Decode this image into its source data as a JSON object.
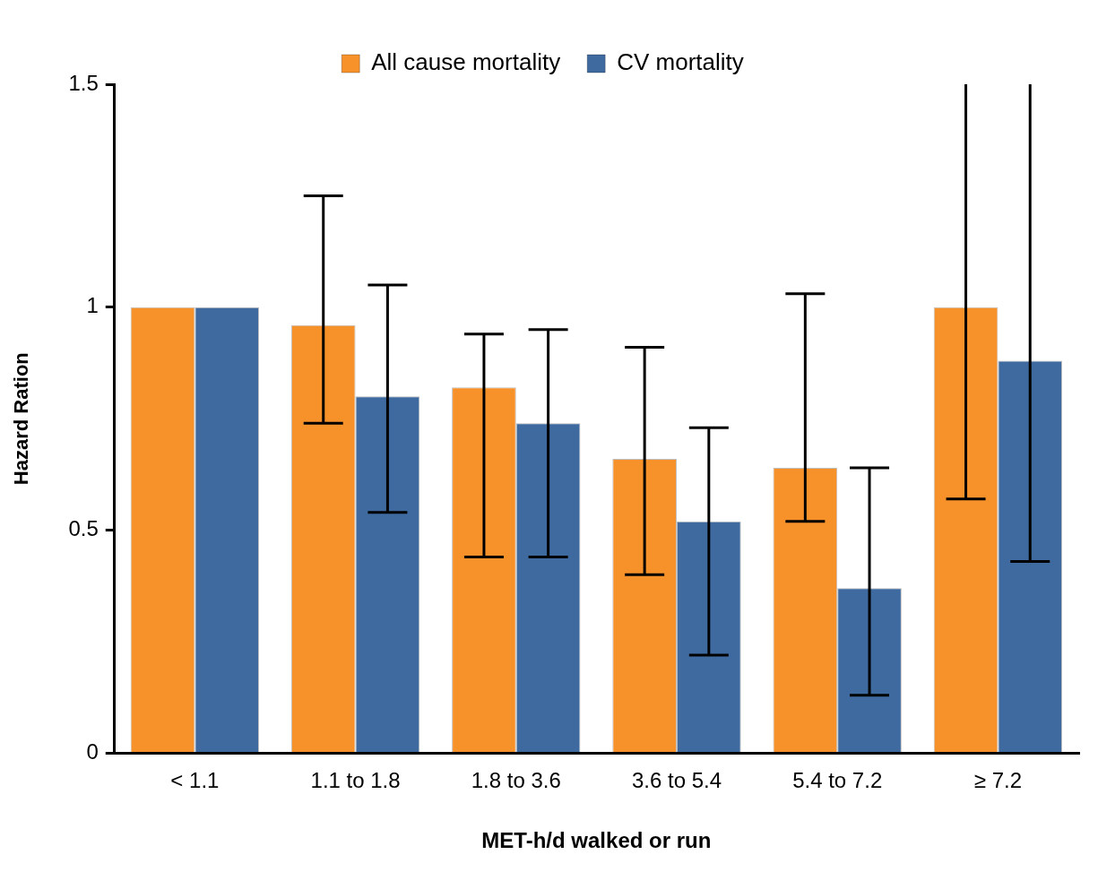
{
  "chart_data": {
    "type": "bar",
    "categories": [
      "< 1.1",
      "1.1 to 1.8",
      "1.8 to 3.6",
      "3.6 to 5.4",
      "5.4 to 7.2",
      "≥ 7.2"
    ],
    "series": [
      {
        "name": "All cause mortality",
        "color": "#f7922b",
        "values": [
          1,
          0.96,
          0.82,
          0.66,
          0.64,
          1
        ],
        "errors": [
          null,
          [
            0.74,
            1.25
          ],
          [
            0.44,
            0.94
          ],
          [
            0.4,
            0.91
          ],
          [
            0.52,
            1.03
          ],
          [
            0.57,
            1.5
          ]
        ]
      },
      {
        "name": "CV mortality",
        "color": "#3e6aa0",
        "values": [
          1,
          0.8,
          0.74,
          0.52,
          0.37,
          0.88
        ],
        "errors": [
          null,
          [
            0.54,
            1.05
          ],
          [
            0.44,
            0.95
          ],
          [
            0.22,
            0.73
          ],
          [
            0.13,
            0.64
          ],
          [
            0.43,
            1.5
          ]
        ]
      }
    ],
    "xlabel": "MET-h/d walked or run",
    "ylabel": "Hazard Ration",
    "ylim": [
      0,
      1.5
    ],
    "yticks": [
      0,
      0.5,
      1,
      1.5
    ],
    "grid": false,
    "legend": "top"
  }
}
